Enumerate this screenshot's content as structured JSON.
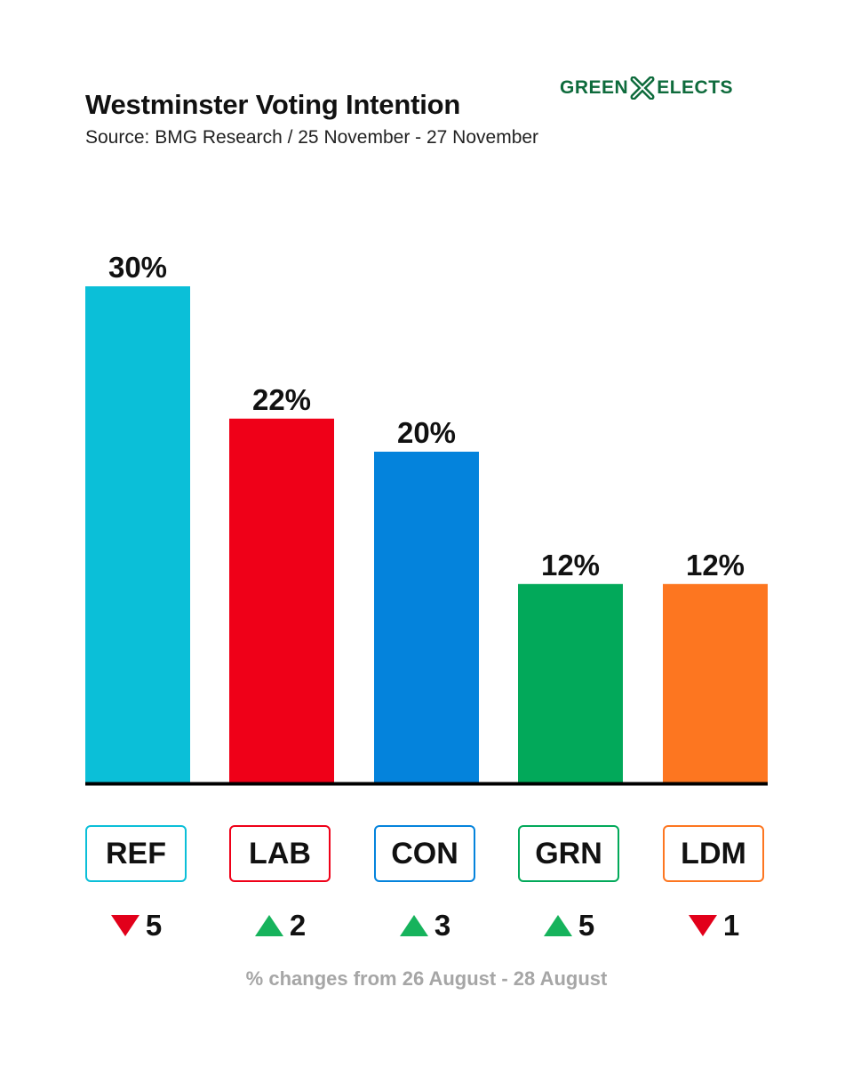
{
  "header": {
    "title": "Westminster Voting Intention",
    "subtitle": "Source: BMG Research / 25 November - 27 November",
    "logo_left": "GREEN",
    "logo_right": "ELECTS"
  },
  "footnote": "% changes from 26 August - 28 August",
  "colors": {
    "logo": "#0e6b3c",
    "up": "#16b35c",
    "down": "#e2001a",
    "axis": "#000000"
  },
  "chart_data": {
    "type": "bar",
    "title": "Westminster Voting Intention",
    "subtitle": "Source: BMG Research / 25 November - 27 November",
    "categories": [
      "REF",
      "LAB",
      "CON",
      "GRN",
      "LDM"
    ],
    "values": [
      30,
      22,
      20,
      12,
      12
    ],
    "value_labels": [
      "30%",
      "22%",
      "20%",
      "12%",
      "12%"
    ],
    "colors": [
      "#0bbfd8",
      "#ef0018",
      "#0483dc",
      "#02a95a",
      "#fd7620"
    ],
    "changes": [
      {
        "direction": "down",
        "value": "5"
      },
      {
        "direction": "up",
        "value": "2"
      },
      {
        "direction": "up",
        "value": "3"
      },
      {
        "direction": "up",
        "value": "5"
      },
      {
        "direction": "down",
        "value": "1"
      }
    ],
    "xlabel": "",
    "ylabel": "",
    "ylim": [
      0,
      30
    ],
    "grid": false,
    "legend": "none"
  }
}
